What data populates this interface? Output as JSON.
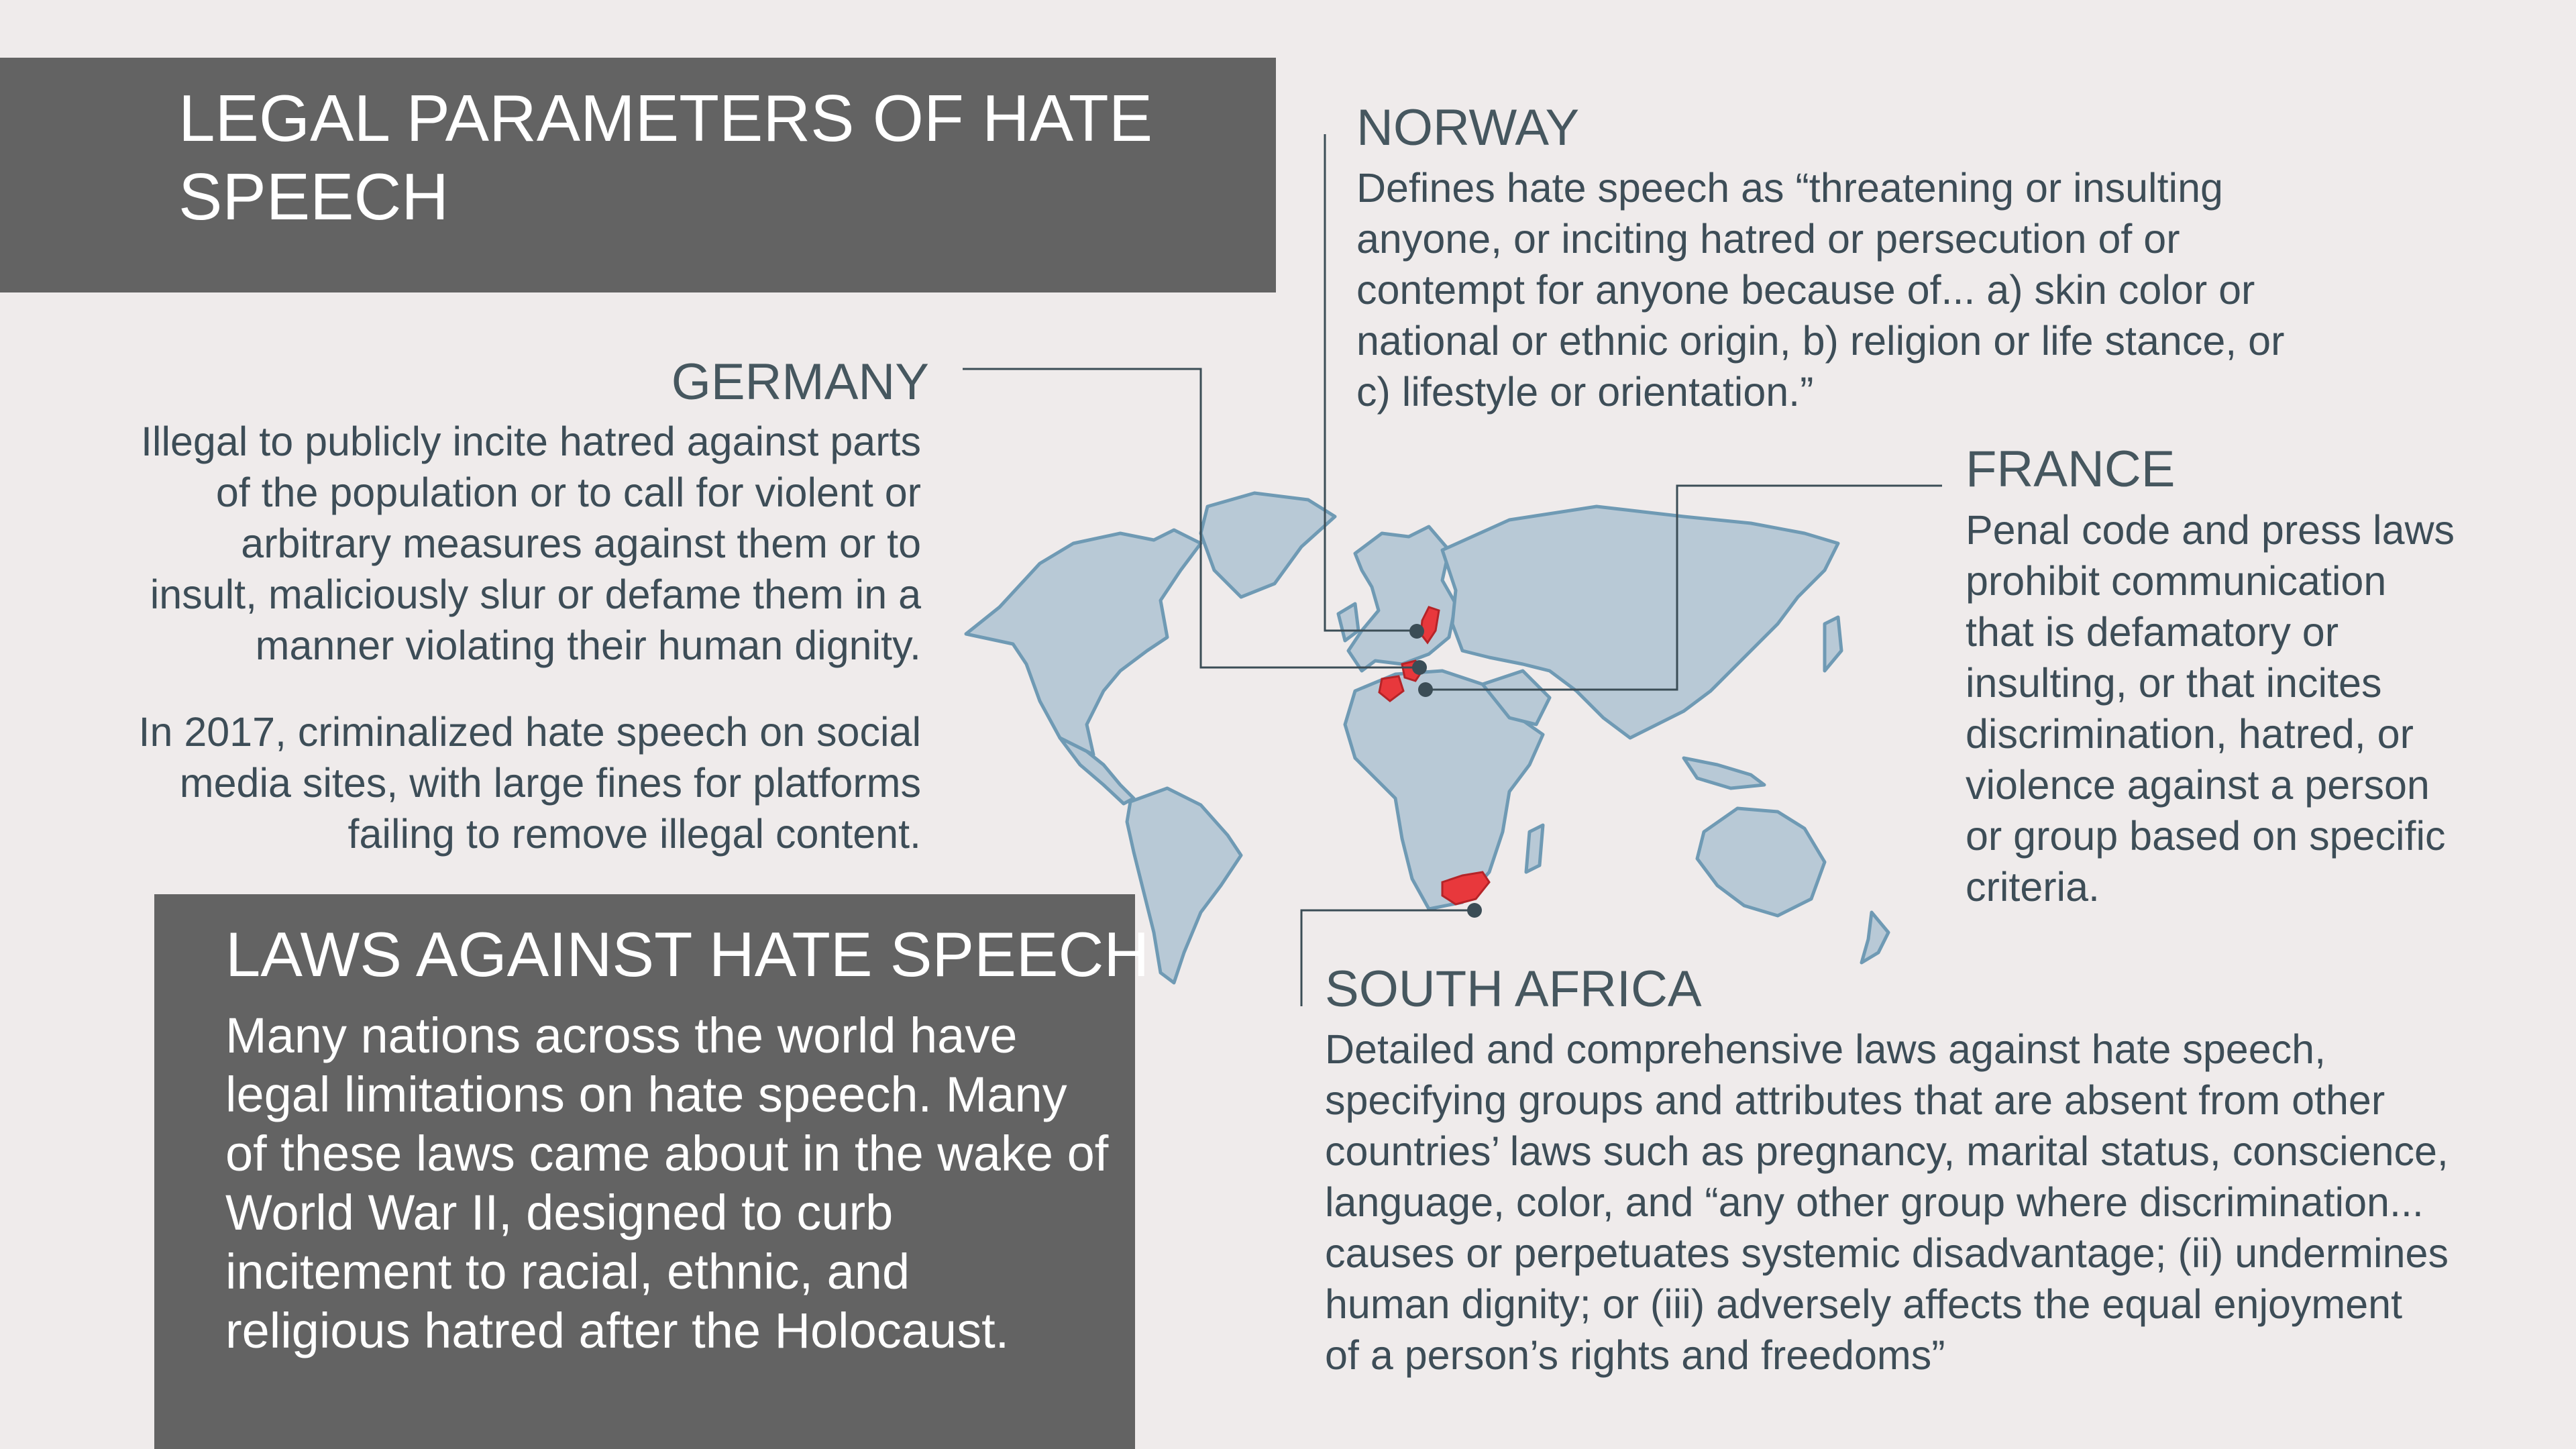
{
  "header": {
    "title_line1": "LEGAL PARAMETERS OF HATE",
    "title_line2": "SPEECH"
  },
  "intro": {
    "title": "LAWS AGAINST HATE SPEECH",
    "lines": [
      "Many nations across the world have",
      "legal limitations on hate speech. Many",
      "of these laws came about in the wake of",
      "World War II, designed to curb",
      "incitement to racial, ethnic, and",
      "religious hatred after the Holocaust."
    ]
  },
  "germany": {
    "heading": "GERMANY",
    "para1": [
      "Illegal to publicly incite hatred against parts",
      "of the population or to call for violent or",
      "arbitrary measures against them or to",
      "insult, maliciously slur or defame them in a",
      "manner violating their human dignity."
    ],
    "para2": [
      "In 2017, criminalized hate speech on social",
      "media sites, with large fines for platforms",
      "failing to remove illegal content."
    ]
  },
  "norway": {
    "heading": "NORWAY",
    "lines": [
      "Defines hate speech as “threatening or insulting",
      "anyone, or inciting hatred or persecution of or",
      "contempt for anyone because of... a) skin color or",
      "national or ethnic origin, b) religion or life stance, or",
      "c) lifestyle or orientation.”"
    ]
  },
  "france": {
    "heading": "FRANCE",
    "lines": [
      "Penal code and press laws",
      "prohibit communication",
      "that is defamatory or",
      "insulting, or that incites",
      "discrimination, hatred, or",
      "violence against a person",
      "or group based on specific",
      "criteria."
    ]
  },
  "south_africa": {
    "heading": "SOUTH AFRICA",
    "lines": [
      "Detailed and comprehensive laws against hate speech,",
      "specifying groups and attributes that are absent from other",
      "countries’ laws such as pregnancy, marital status, conscience,",
      "language, color, and “any other group where discrimination...",
      "causes or perpetuates systemic disadvantage; (ii) undermines",
      "human dignity; or (iii) adversely affects the equal enjoyment",
      "of a person’s rights and freedoms”"
    ]
  },
  "colors": {
    "background": "#efebeb",
    "panel": "#636363",
    "land": "#b8c9d6",
    "land_stroke": "#6f9ab4",
    "highlight": "#e8383c",
    "marker": "#3b4d56",
    "text": "#3d4d57"
  }
}
